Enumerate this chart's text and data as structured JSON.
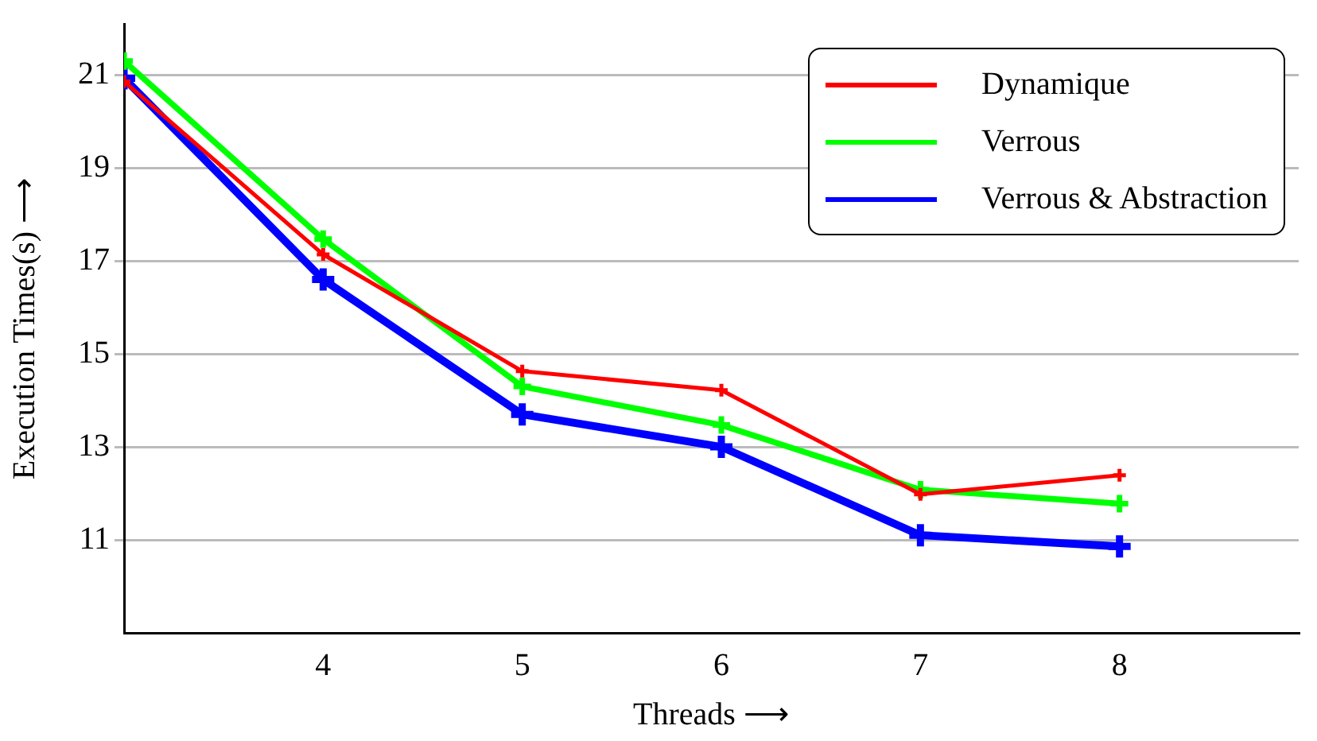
{
  "chart_data": {
    "type": "line",
    "xlabel": "Threads ⟶",
    "ylabel": "Execution Times(s) ⟶",
    "x": [
      3,
      4,
      5,
      6,
      7,
      8
    ],
    "xlim": [
      3,
      8.9
    ],
    "xticks": [
      4,
      5,
      6,
      7,
      8
    ],
    "ylim": [
      9,
      22.1
    ],
    "yticks": [
      11,
      13,
      15,
      17,
      19,
      21
    ],
    "grid": "y",
    "legend": "top right",
    "marker": "cross",
    "line_style": "solid",
    "series": [
      {
        "name": "Dynamique",
        "color": "#ff0000",
        "values": [
          20.86,
          17.14,
          14.63,
          14.22,
          11.98,
          12.39
        ]
      },
      {
        "name": "Verrous",
        "color": "#00ff00",
        "values": [
          21.3,
          17.47,
          14.3,
          13.47,
          12.08,
          11.78
        ]
      },
      {
        "name": "Verrous & Abstraction",
        "color": "#0000ff",
        "values": [
          20.93,
          16.6,
          13.7,
          13.0,
          11.1,
          10.86
        ]
      }
    ]
  }
}
